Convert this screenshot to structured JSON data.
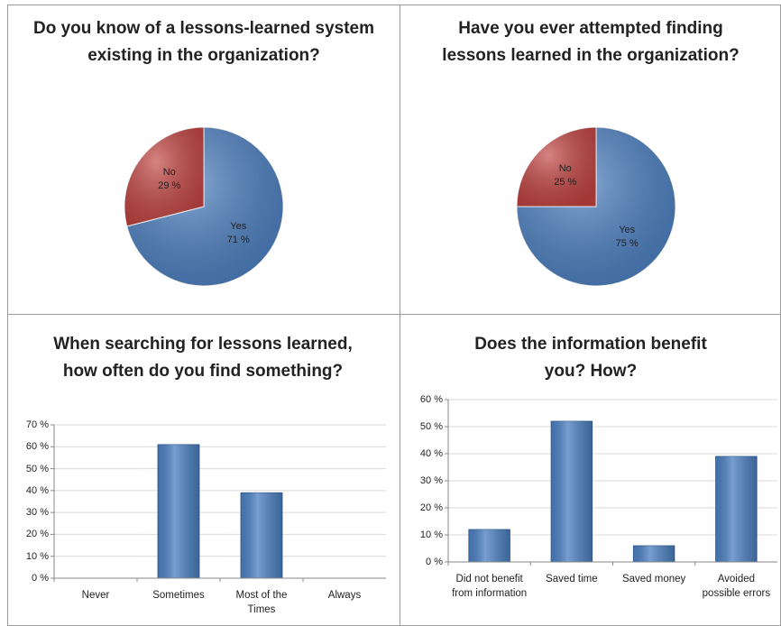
{
  "chart_data": [
    {
      "type": "pie",
      "title": "Do you know of a lessons-learned system existing in the organization?",
      "categories": [
        "Yes",
        "No"
      ],
      "values": [
        71,
        29
      ],
      "value_labels": [
        "71 %",
        "29 %"
      ],
      "colors": [
        "#4a7ebf",
        "#c0423f"
      ]
    },
    {
      "type": "pie",
      "title": "Have you ever attempted finding lessons learned in the organization?",
      "categories": [
        "Yes",
        "No"
      ],
      "values": [
        75,
        25
      ],
      "value_labels": [
        "75 %",
        "25 %"
      ],
      "colors": [
        "#4a7ebf",
        "#c0423f"
      ]
    },
    {
      "type": "bar",
      "title": "When searching for lessons learned, how often do you find something?",
      "categories": [
        "Never",
        "Sometimes",
        "Most of the Times",
        "Always"
      ],
      "values": [
        0,
        61,
        39,
        0
      ],
      "color": "#4a7ebf",
      "ylim": [
        0,
        70
      ],
      "yticks": [
        {
          "value": 0,
          "label": "0 %"
        },
        {
          "value": 10,
          "label": "10 %"
        },
        {
          "value": 20,
          "label": "20 %"
        },
        {
          "value": 30,
          "label": "30 %"
        },
        {
          "value": 40,
          "label": "40 %"
        },
        {
          "value": 50,
          "label": "50 %"
        },
        {
          "value": 60,
          "label": "60 %"
        },
        {
          "value": 70,
          "label": "70 %"
        }
      ],
      "grid": true
    },
    {
      "type": "bar",
      "title": "Does the information benefit you? How?",
      "categories": [
        "Did not benefit from information",
        "Saved time",
        "Saved money",
        "Avoided possible errors"
      ],
      "values": [
        12,
        52,
        6,
        39
      ],
      "color": "#4a7ebf",
      "ylim": [
        0,
        60
      ],
      "yticks": [
        {
          "value": 0,
          "label": "0 %"
        },
        {
          "value": 10,
          "label": "10 %"
        },
        {
          "value": 20,
          "label": "20 %"
        },
        {
          "value": 30,
          "label": "30 %"
        },
        {
          "value": 40,
          "label": "40 %"
        },
        {
          "value": 50,
          "label": "50 %"
        },
        {
          "value": 60,
          "label": "60 %"
        }
      ],
      "grid": true
    }
  ]
}
